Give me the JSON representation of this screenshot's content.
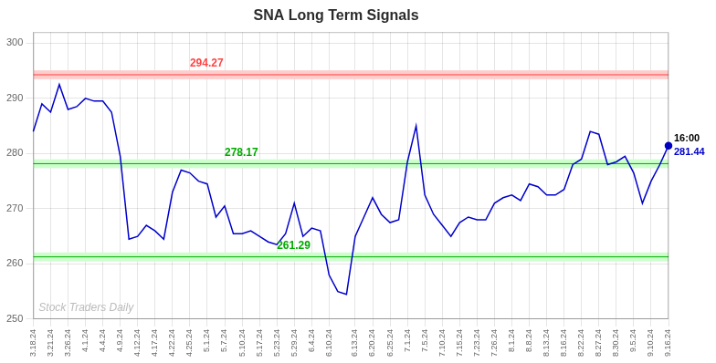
{
  "chart_data": {
    "type": "line",
    "title": "SNA Long Term Signals",
    "categories": [
      "3.18.24",
      null,
      "3.21.24",
      null,
      "3.26.24",
      null,
      "4.1.24",
      null,
      "4.4.24",
      null,
      "4.9.24",
      null,
      "4.12.24",
      null,
      "4.17.24",
      null,
      "4.22.24",
      null,
      "4.25.24",
      null,
      "5.1.24",
      null,
      "5.7.24",
      null,
      "5.10.24",
      null,
      "5.17.24",
      null,
      "5.23.24",
      null,
      "5.29.24",
      null,
      "6.4.24",
      null,
      "6.10.24",
      null,
      null,
      "6.13.24",
      null,
      "6.20.24",
      null,
      "6.25.24",
      null,
      "7.1.24",
      null,
      "7.5.24",
      null,
      "7.10.24",
      null,
      "7.15.24",
      null,
      "7.23.24",
      null,
      "7.26.24",
      null,
      "8.1.24",
      null,
      "8.8.24",
      null,
      "8.13.24",
      null,
      "8.16.24",
      null,
      "8.22.24",
      null,
      "8.27.24",
      null,
      "8.30.24",
      null,
      "9.5.24",
      null,
      "9.10.24",
      null,
      "9.16.24"
    ],
    "values": [
      284.0,
      289.0,
      287.5,
      292.5,
      288.0,
      288.5,
      290.0,
      289.5,
      289.5,
      287.5,
      279.5,
      264.5,
      265.0,
      267.0,
      266.0,
      264.5,
      273.0,
      277.0,
      276.5,
      275.0,
      274.5,
      268.5,
      270.5,
      265.5,
      265.5,
      266.0,
      265.0,
      264.0,
      263.5,
      265.5,
      271.0,
      265.0,
      266.5,
      266.0,
      258.0,
      255.0,
      254.5,
      265.0,
      268.5,
      272.0,
      269.0,
      267.5,
      268.0,
      278.5,
      285.0,
      272.5,
      269.0,
      267.0,
      265.0,
      267.5,
      268.5,
      268.0,
      268.0,
      271.0,
      272.0,
      272.5,
      271.5,
      274.5,
      274.0,
      272.5,
      272.5,
      273.5,
      278.0,
      279.0,
      284.0,
      283.5,
      278.0,
      278.5,
      279.5,
      276.5,
      271.0,
      275.0,
      278.0,
      281.44
    ],
    "color": "#0000cc",
    "ylim": [
      250,
      302
    ],
    "yticks": [
      250,
      260,
      270,
      280,
      290,
      300
    ],
    "grid": true,
    "reference_lines": [
      {
        "value": 294.27,
        "label": "294.27",
        "color": "#ff4444",
        "band_color": "#ffcccc"
      },
      {
        "value": 278.17,
        "label": "278.17",
        "color": "#00aa00",
        "band_color": "#ccffcc"
      },
      {
        "value": 261.29,
        "label": "261.29",
        "color": "#00aa00",
        "band_color": "#ccffcc"
      }
    ],
    "end_annotation": [
      {
        "text": "16:00",
        "color": "#000000"
      },
      {
        "text": "281.44",
        "color": "#0000cc"
      }
    ],
    "watermark": "Stock Traders Daily"
  }
}
